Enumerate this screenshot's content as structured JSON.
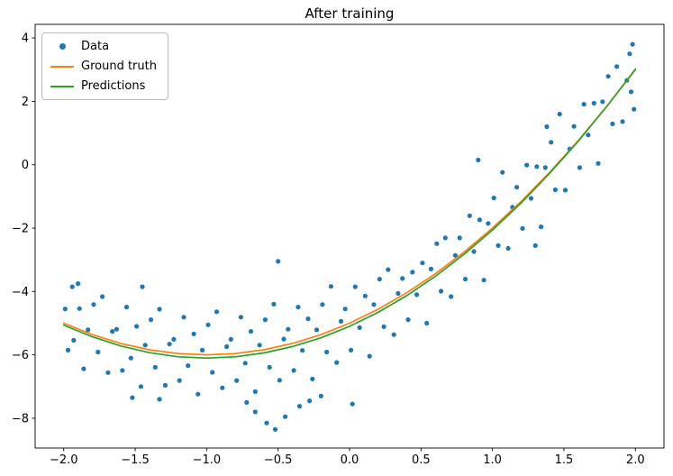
{
  "chart_data": {
    "type": "scatter",
    "title": "After training",
    "xlabel": "",
    "ylabel": "",
    "grid": false,
    "legend_position": "upper left",
    "xlim": [
      -2.2,
      2.2
    ],
    "ylim": [
      -8.94,
      4.43
    ],
    "xticks": {
      "values": [
        -2.0,
        -1.5,
        -1.0,
        -0.5,
        0.0,
        0.5,
        1.0,
        1.5,
        2.0
      ],
      "labels": [
        "−2.0",
        "−1.5",
        "−1.0",
        "−0.5",
        "0.0",
        "0.5",
        "1.0",
        "1.5",
        "2.0"
      ]
    },
    "yticks": {
      "values": [
        -8,
        -6,
        -4,
        -2,
        0,
        2,
        4
      ],
      "labels": [
        "−8",
        "−6",
        "−4",
        "−2",
        "0",
        "2",
        "4"
      ]
    },
    "series": [
      {
        "name": "Data",
        "kind": "scatter",
        "color": "#1f77b4",
        "points": [
          [
            -1.99,
            -4.55
          ],
          [
            -1.97,
            -5.85
          ],
          [
            -1.94,
            -3.85
          ],
          [
            -1.93,
            -5.54
          ],
          [
            -1.89,
            -4.54
          ],
          [
            -1.86,
            -6.44
          ],
          [
            -1.83,
            -5.21
          ],
          [
            -1.79,
            -4.41
          ],
          [
            -1.76,
            -5.91
          ],
          [
            -1.73,
            -4.16
          ],
          [
            -1.69,
            -6.56
          ],
          [
            -1.66,
            -5.26
          ],
          [
            -1.63,
            -5.19
          ],
          [
            -1.59,
            -6.49
          ],
          [
            -1.56,
            -4.49
          ],
          [
            -1.53,
            -6.1
          ],
          [
            -1.49,
            -5.1
          ],
          [
            -1.46,
            -7.0
          ],
          [
            -1.43,
            -5.69
          ],
          [
            -1.39,
            -4.89
          ],
          [
            -1.36,
            -6.39
          ],
          [
            -1.33,
            -4.56
          ],
          [
            -1.29,
            -6.96
          ],
          [
            -1.26,
            -5.66
          ],
          [
            -1.23,
            -5.51
          ],
          [
            -1.19,
            -6.81
          ],
          [
            -1.16,
            -4.81
          ],
          [
            -1.13,
            -6.34
          ],
          [
            -1.09,
            -5.34
          ],
          [
            -1.06,
            -7.24
          ],
          [
            -1.03,
            -5.85
          ],
          [
            -0.99,
            -5.05
          ],
          [
            -0.96,
            -6.55
          ],
          [
            -0.93,
            -4.64
          ],
          [
            -0.89,
            -7.04
          ],
          [
            -0.86,
            -5.74
          ],
          [
            -0.83,
            -5.51
          ],
          [
            -0.79,
            -6.81
          ],
          [
            -0.76,
            -4.81
          ],
          [
            -0.73,
            -6.26
          ],
          [
            -0.69,
            -5.26
          ],
          [
            -0.66,
            -7.16
          ],
          [
            -0.63,
            -5.69
          ],
          [
            -0.59,
            -4.89
          ],
          [
            -0.56,
            -6.39
          ],
          [
            -0.53,
            -4.4
          ],
          [
            -0.49,
            -6.8
          ],
          [
            -0.46,
            -5.5
          ],
          [
            -0.43,
            -5.19
          ],
          [
            -0.39,
            -6.49
          ],
          [
            -0.36,
            -4.49
          ],
          [
            -0.33,
            -5.86
          ],
          [
            -0.29,
            -4.86
          ],
          [
            -0.26,
            -6.76
          ],
          [
            -0.23,
            -5.21
          ],
          [
            -0.19,
            -4.41
          ],
          [
            -0.16,
            -5.91
          ],
          [
            -0.13,
            -3.84
          ],
          [
            -0.09,
            -6.24
          ],
          [
            -0.06,
            -4.94
          ],
          [
            -0.03,
            -4.55
          ],
          [
            0.01,
            -5.85
          ],
          [
            0.04,
            -3.85
          ],
          [
            0.07,
            -5.14
          ],
          [
            0.11,
            -4.14
          ],
          [
            0.14,
            -6.04
          ],
          [
            0.17,
            -4.41
          ],
          [
            0.21,
            -3.61
          ],
          [
            0.24,
            -5.11
          ],
          [
            0.27,
            -3.31
          ],
          [
            0.31,
            -5.36
          ],
          [
            0.34,
            -4.06
          ],
          [
            0.37,
            -3.59
          ],
          [
            0.41,
            -4.89
          ],
          [
            0.44,
            -3.39
          ],
          [
            0.47,
            -4.1
          ],
          [
            0.51,
            -3.1
          ],
          [
            0.54,
            -5.0
          ],
          [
            0.57,
            -3.29
          ],
          [
            0.61,
            -2.49
          ],
          [
            0.64,
            -3.99
          ],
          [
            0.67,
            -2.31
          ],
          [
            0.71,
            -4.16
          ],
          [
            0.74,
            -2.86
          ],
          [
            0.77,
            -2.31
          ],
          [
            0.81,
            -3.61
          ],
          [
            0.84,
            -1.61
          ],
          [
            0.87,
            -2.74
          ],
          [
            0.91,
            -1.74
          ],
          [
            0.94,
            -3.64
          ],
          [
            0.97,
            -1.85
          ],
          [
            1.01,
            -1.05
          ],
          [
            1.04,
            -2.55
          ],
          [
            1.07,
            -0.24
          ],
          [
            1.11,
            -2.64
          ],
          [
            1.14,
            -1.34
          ],
          [
            1.17,
            -0.71
          ],
          [
            1.21,
            -2.01
          ],
          [
            1.24,
            -0.01
          ],
          [
            1.27,
            -1.06
          ],
          [
            1.31,
            -0.06
          ],
          [
            1.34,
            -1.96
          ],
          [
            1.37,
            -0.09
          ],
          [
            1.41,
            0.71
          ],
          [
            1.44,
            -0.79
          ],
          [
            1.47,
            1.6
          ],
          [
            1.51,
            -0.8
          ],
          [
            1.54,
            0.5
          ],
          [
            1.57,
            1.21
          ],
          [
            1.61,
            -0.09
          ],
          [
            1.64,
            1.91
          ],
          [
            1.67,
            0.94
          ],
          [
            1.71,
            1.94
          ],
          [
            1.74,
            0.04
          ],
          [
            1.77,
            1.99
          ],
          [
            1.81,
            2.79
          ],
          [
            1.84,
            1.29
          ],
          [
            1.87,
            3.1
          ],
          [
            1.91,
            1.36
          ],
          [
            1.94,
            2.66
          ],
          [
            1.96,
            3.5
          ],
          [
            1.98,
            3.8
          ],
          [
            1.99,
            1.75
          ],
          [
            1.97,
            2.3
          ],
          [
            -0.52,
            -8.35
          ],
          [
            -0.58,
            -8.15
          ],
          [
            -0.45,
            -7.95
          ],
          [
            -0.66,
            -7.8
          ],
          [
            -0.35,
            -7.62
          ],
          [
            -0.72,
            -7.5
          ],
          [
            -0.28,
            -7.45
          ],
          [
            -0.2,
            -7.3
          ],
          [
            -0.5,
            -3.05
          ],
          [
            -1.45,
            -3.85
          ],
          [
            -1.9,
            -3.75
          ],
          [
            0.9,
            0.15
          ],
          [
            0.02,
            -7.55
          ],
          [
            -1.52,
            -7.35
          ],
          [
            -1.33,
            -7.4
          ],
          [
            1.3,
            -2.55
          ],
          [
            1.38,
            1.2
          ]
        ]
      },
      {
        "name": "Ground truth",
        "kind": "line",
        "color": "#ff7f0e",
        "formula": "y = x^2 + 2x − 5",
        "points": [
          [
            -2.0,
            -5.0
          ],
          [
            -1.8,
            -5.36
          ],
          [
            -1.6,
            -5.64
          ],
          [
            -1.4,
            -5.84
          ],
          [
            -1.2,
            -5.96
          ],
          [
            -1.0,
            -6.0
          ],
          [
            -0.8,
            -5.96
          ],
          [
            -0.6,
            -5.84
          ],
          [
            -0.4,
            -5.64
          ],
          [
            -0.2,
            -5.36
          ],
          [
            0.0,
            -5.0
          ],
          [
            0.2,
            -4.56
          ],
          [
            0.4,
            -4.04
          ],
          [
            0.6,
            -3.44
          ],
          [
            0.8,
            -2.76
          ],
          [
            1.0,
            -2.0
          ],
          [
            1.2,
            -1.16
          ],
          [
            1.4,
            -0.24
          ],
          [
            1.6,
            0.76
          ],
          [
            1.8,
            1.84
          ],
          [
            2.0,
            3.0
          ]
        ]
      },
      {
        "name": "Predictions",
        "kind": "line",
        "color": "#2ca02c",
        "points": [
          [
            -2.0,
            -5.06
          ],
          [
            -1.8,
            -5.43
          ],
          [
            -1.6,
            -5.72
          ],
          [
            -1.4,
            -5.93
          ],
          [
            -1.2,
            -6.06
          ],
          [
            -1.0,
            -6.1
          ],
          [
            -0.8,
            -6.06
          ],
          [
            -0.6,
            -5.94
          ],
          [
            -0.4,
            -5.74
          ],
          [
            -0.2,
            -5.46
          ],
          [
            0.0,
            -5.1
          ],
          [
            0.2,
            -4.66
          ],
          [
            0.4,
            -4.13
          ],
          [
            0.6,
            -3.52
          ],
          [
            0.8,
            -2.83
          ],
          [
            1.0,
            -2.06
          ],
          [
            1.2,
            -1.21
          ],
          [
            1.4,
            -0.27
          ],
          [
            1.6,
            0.74
          ],
          [
            1.8,
            1.84
          ],
          [
            2.0,
            3.02
          ]
        ]
      }
    ]
  }
}
